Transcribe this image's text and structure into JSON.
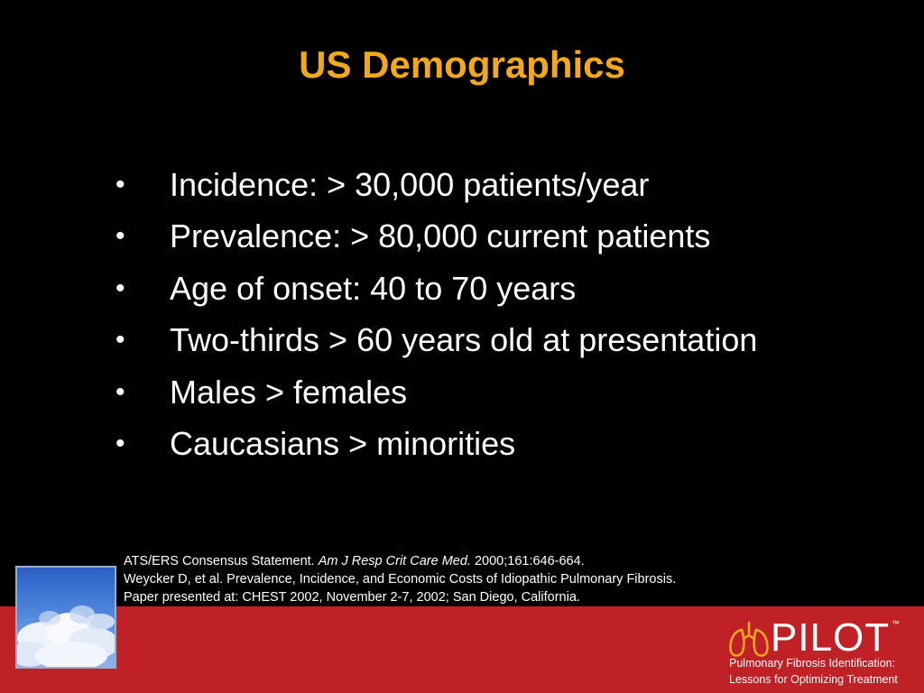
{
  "slide": {
    "title": "US Demographics",
    "bullet_glyph": "•",
    "bullets": [
      "Incidence: > 30,000 patients/year",
      "Prevalence: > 80,000 current patients",
      "Age of onset: 40 to 70 years",
      "Two-thirds > 60 years old at presentation",
      "Males > females",
      "Caucasians > minorities"
    ],
    "references": {
      "line1_prefix": "ATS/ERS Consensus Statement. ",
      "line1_journal": "Am J Resp Crit Care Med.",
      "line1_suffix": " 2000;161:646-664.",
      "line2": "Weycker D, et al. Prevalence, Incidence, and Economic Costs of Idiopathic Pulmonary Fibrosis.",
      "line3": "Paper presented at: CHEST 2002, November 2-7, 2002; San Diego, California."
    }
  },
  "logo": {
    "wordmark": "PILOT",
    "trademark": "™",
    "tagline1": "Pulmonary Fibrosis Identification:",
    "tagline2": "Lessons for Optimizing Treatment",
    "icon": "lungs-icon"
  },
  "colors": {
    "background": "#000000",
    "title": "#F0A81E",
    "footer_band": "#C02126",
    "logo_icon": "#F0A81E"
  }
}
